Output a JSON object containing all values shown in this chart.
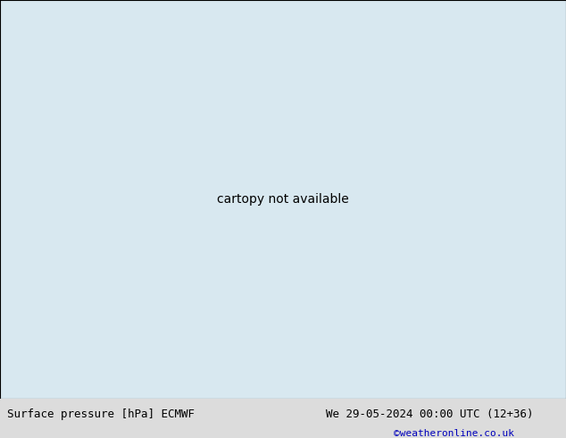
{
  "title_left": "Surface pressure [hPa] ECMWF",
  "title_right": "We 29-05-2024 00:00 UTC (12+36)",
  "credit": "©weatheronline.co.uk",
  "land_color": "#b5d6a0",
  "sea_color": "#d8e8f0",
  "mountain_color": "#a0a0a0",
  "blue": "#0000cc",
  "red": "#cc0000",
  "black": "#000000",
  "footer_bg": "#dcdcdc",
  "footer_text": "#000000",
  "credit_color": "#0000bb",
  "lon_min": -45,
  "lon_max": 55,
  "lat_min": 25,
  "lat_max": 75
}
